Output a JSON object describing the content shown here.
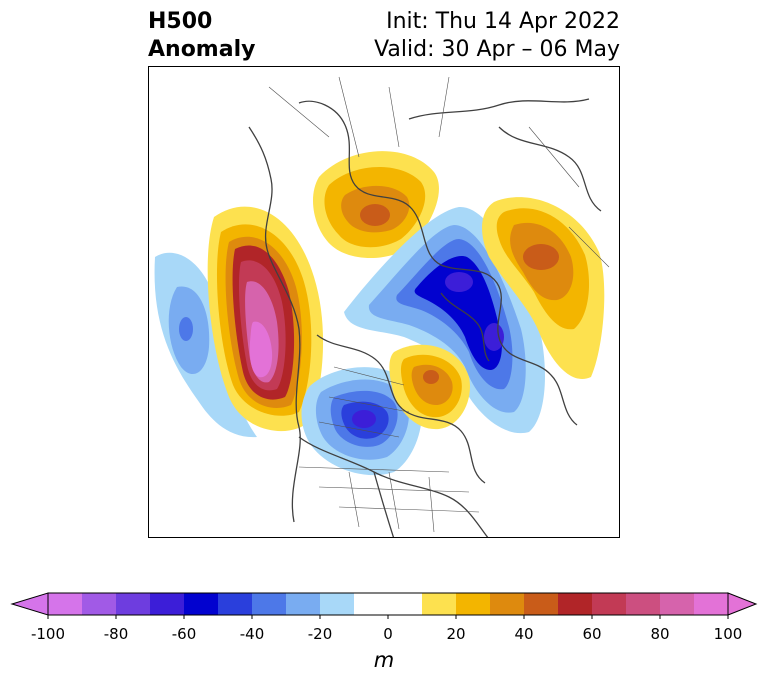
{
  "title": {
    "line1": "H500",
    "line2": "Anomaly",
    "init": "Init: Thu 14 Apr 2022",
    "valid": "Valid: 30 Apr – 06 May"
  },
  "colorbar": {
    "unit": "m",
    "ticks": [
      "-100",
      "-80",
      "-60",
      "-40",
      "-20",
      "0",
      "20",
      "40",
      "60",
      "80",
      "100"
    ],
    "colors": [
      "#d574ea",
      "#a15ae6",
      "#6e3ddf",
      "#3c1ed8",
      "#0202cf",
      "#2a3fdc",
      "#4d78e8",
      "#79acf1",
      "#a8d8f8",
      "#ffffff",
      "#ffffff",
      "#fde14f",
      "#f3b500",
      "#de8a0e",
      "#c95c19",
      "#b12528",
      "#c23a55",
      "#cc4f80",
      "#d663ac",
      "#e372d7"
    ],
    "extend_low": "#d574ea",
    "extend_high": "#e372d7"
  }
}
